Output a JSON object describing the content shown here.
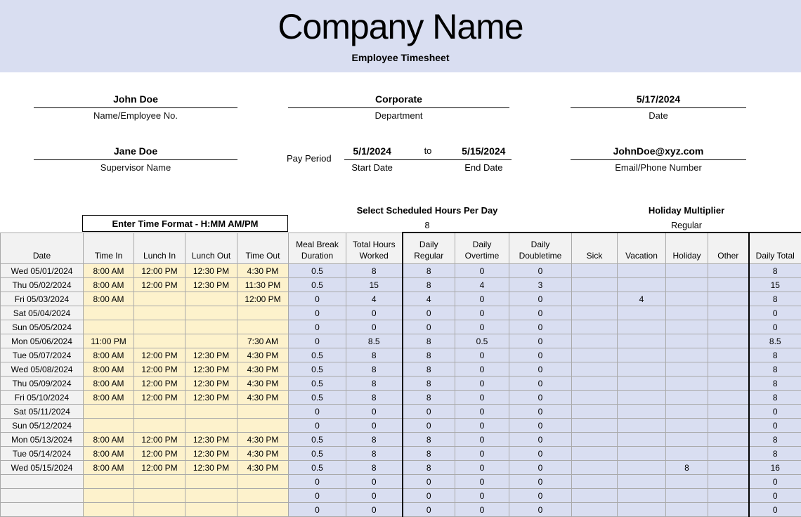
{
  "header": {
    "company_name": "Company Name",
    "subtitle": "Employee Timesheet"
  },
  "info": {
    "employee": {
      "value": "John Doe",
      "label": "Name/Employee No."
    },
    "department": {
      "value": "Corporate",
      "label": "Department"
    },
    "date": {
      "value": "5/17/2024",
      "label": "Date"
    },
    "supervisor": {
      "value": "Jane Doe",
      "label": "Supervisor Name"
    },
    "email": {
      "value": "JohnDoe@xyz.com",
      "label": "Email/Phone Number"
    },
    "pay_period": {
      "label": "Pay Period",
      "start_value": "5/1/2024",
      "separator": "to",
      "end_value": "5/15/2024",
      "start_label": "Start Date",
      "end_label": "End Date"
    }
  },
  "controls": {
    "scheduled_hours": {
      "label": "Select Scheduled Hours Per Day",
      "value": "8"
    },
    "holiday_multiplier": {
      "label": "Holiday Multiplier",
      "value": "Regular"
    },
    "time_format_note": "Enter Time Format - H:MM AM/PM"
  },
  "colors": {
    "banner_bg": "#d9def1",
    "time_entry_bg": "#fdf2cc",
    "calculated_bg": "#d9def1",
    "date_col_bg": "#f2f2f2",
    "gridline": "#a9a9a9"
  },
  "table": {
    "columns": [
      {
        "key": "date",
        "lines": [
          "Date"
        ]
      },
      {
        "key": "time-in",
        "lines": [
          "Time In"
        ]
      },
      {
        "key": "lunch-in",
        "lines": [
          "Lunch In"
        ]
      },
      {
        "key": "lunch-out",
        "lines": [
          "Lunch Out"
        ]
      },
      {
        "key": "time-out",
        "lines": [
          "Time Out"
        ]
      },
      {
        "key": "meal-break",
        "lines": [
          "Meal Break",
          "Duration"
        ]
      },
      {
        "key": "total-hours",
        "lines": [
          "Total Hours",
          "Worked"
        ]
      },
      {
        "key": "daily-regular",
        "lines": [
          "Daily",
          "Regular"
        ]
      },
      {
        "key": "daily-overtime",
        "lines": [
          "Daily",
          "Overtime"
        ]
      },
      {
        "key": "daily-doubletime",
        "lines": [
          "Daily",
          "Doubletime"
        ]
      },
      {
        "key": "sick",
        "lines": [
          "Sick"
        ]
      },
      {
        "key": "vacation",
        "lines": [
          "Vacation"
        ]
      },
      {
        "key": "holiday",
        "lines": [
          "Holiday"
        ]
      },
      {
        "key": "other",
        "lines": [
          "Other"
        ]
      },
      {
        "key": "daily-total",
        "lines": [
          "Daily Total"
        ]
      }
    ],
    "rows": [
      [
        "Wed 05/01/2024",
        "8:00 AM",
        "12:00 PM",
        "12:30 PM",
        "4:30 PM",
        "0.5",
        "8",
        "8",
        "0",
        "0",
        "",
        "",
        "",
        "",
        "8"
      ],
      [
        "Thu 05/02/2024",
        "8:00 AM",
        "12:00 PM",
        "12:30 PM",
        "11:30 PM",
        "0.5",
        "15",
        "8",
        "4",
        "3",
        "",
        "",
        "",
        "",
        "15"
      ],
      [
        "Fri 05/03/2024",
        "8:00 AM",
        "",
        "",
        "12:00 PM",
        "0",
        "4",
        "4",
        "0",
        "0",
        "",
        "4",
        "",
        "",
        "8"
      ],
      [
        "Sat 05/04/2024",
        "",
        "",
        "",
        "",
        "0",
        "0",
        "0",
        "0",
        "0",
        "",
        "",
        "",
        "",
        "0"
      ],
      [
        "Sun 05/05/2024",
        "",
        "",
        "",
        "",
        "0",
        "0",
        "0",
        "0",
        "0",
        "",
        "",
        "",
        "",
        "0"
      ],
      [
        "Mon 05/06/2024",
        "11:00 PM",
        "",
        "",
        "7:30 AM",
        "0",
        "8.5",
        "8",
        "0.5",
        "0",
        "",
        "",
        "",
        "",
        "8.5"
      ],
      [
        "Tue 05/07/2024",
        "8:00 AM",
        "12:00 PM",
        "12:30 PM",
        "4:30 PM",
        "0.5",
        "8",
        "8",
        "0",
        "0",
        "",
        "",
        "",
        "",
        "8"
      ],
      [
        "Wed 05/08/2024",
        "8:00 AM",
        "12:00 PM",
        "12:30 PM",
        "4:30 PM",
        "0.5",
        "8",
        "8",
        "0",
        "0",
        "",
        "",
        "",
        "",
        "8"
      ],
      [
        "Thu 05/09/2024",
        "8:00 AM",
        "12:00 PM",
        "12:30 PM",
        "4:30 PM",
        "0.5",
        "8",
        "8",
        "0",
        "0",
        "",
        "",
        "",
        "",
        "8"
      ],
      [
        "Fri 05/10/2024",
        "8:00 AM",
        "12:00 PM",
        "12:30 PM",
        "4:30 PM",
        "0.5",
        "8",
        "8",
        "0",
        "0",
        "",
        "",
        "",
        "",
        "8"
      ],
      [
        "Sat 05/11/2024",
        "",
        "",
        "",
        "",
        "0",
        "0",
        "0",
        "0",
        "0",
        "",
        "",
        "",
        "",
        "0"
      ],
      [
        "Sun 05/12/2024",
        "",
        "",
        "",
        "",
        "0",
        "0",
        "0",
        "0",
        "0",
        "",
        "",
        "",
        "",
        "0"
      ],
      [
        "Mon 05/13/2024",
        "8:00 AM",
        "12:00 PM",
        "12:30 PM",
        "4:30 PM",
        "0.5",
        "8",
        "8",
        "0",
        "0",
        "",
        "",
        "",
        "",
        "8"
      ],
      [
        "Tue 05/14/2024",
        "8:00 AM",
        "12:00 PM",
        "12:30 PM",
        "4:30 PM",
        "0.5",
        "8",
        "8",
        "0",
        "0",
        "",
        "",
        "",
        "",
        "8"
      ],
      [
        "Wed 05/15/2024",
        "8:00 AM",
        "12:00 PM",
        "12:30 PM",
        "4:30 PM",
        "0.5",
        "8",
        "8",
        "0",
        "0",
        "",
        "",
        "8",
        "",
        "16"
      ],
      [
        "",
        "",
        "",
        "",
        "",
        "0",
        "0",
        "0",
        "0",
        "0",
        "",
        "",
        "",
        "",
        "0"
      ],
      [
        "",
        "",
        "",
        "",
        "",
        "0",
        "0",
        "0",
        "0",
        "0",
        "",
        "",
        "",
        "",
        "0"
      ],
      [
        "",
        "",
        "",
        "",
        "",
        "0",
        "0",
        "0",
        "0",
        "0",
        "",
        "",
        "",
        "",
        "0"
      ]
    ]
  }
}
